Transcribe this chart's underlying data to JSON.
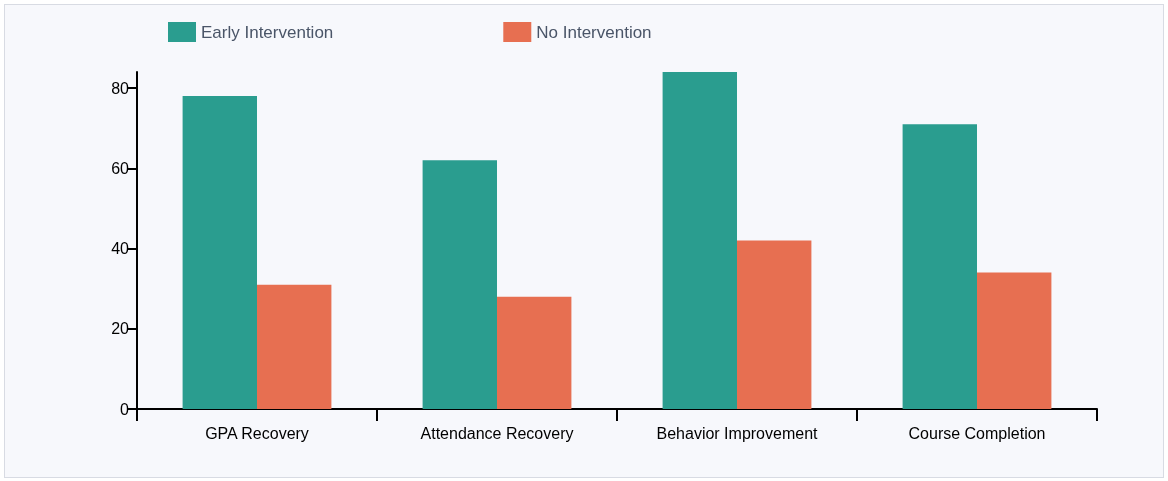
{
  "chart_data": {
    "type": "bar",
    "categories": [
      "GPA Recovery",
      "Attendance Recovery",
      "Behavior Improvement",
      "Course Completion"
    ],
    "series": [
      {
        "name": "Early Intervention",
        "color": "#2a9d8f",
        "values": [
          78,
          62,
          84,
          71
        ]
      },
      {
        "name": "No Intervention",
        "color": "#e76f51",
        "values": [
          31,
          28,
          42,
          34
        ]
      }
    ],
    "ylim": [
      0,
      84
    ],
    "yticks": [
      0,
      20,
      40,
      60,
      80
    ],
    "grid": false,
    "legend": "top left"
  }
}
